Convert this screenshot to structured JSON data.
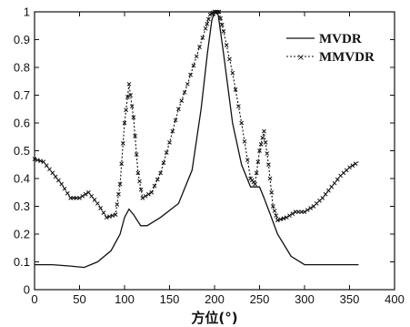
{
  "chart_data": {
    "type": "line",
    "xlabel": "方位(°)",
    "ylabel": "",
    "xlim": [
      0,
      400
    ],
    "ylim": [
      0,
      1
    ],
    "x_ticks": [
      "0",
      "50",
      "100",
      "150",
      "200",
      "250",
      "300",
      "350",
      "400"
    ],
    "y_ticks": [
      "0",
      "0.1",
      "0.2",
      "0.3",
      "0.4",
      "0.5",
      "0.6",
      "0.7",
      "0.8",
      "0.9",
      "1"
    ],
    "grid": false,
    "legend_position": "top-right",
    "series": [
      {
        "name": "MVDR",
        "line_style": "solid",
        "color": "#111111",
        "x": [
          0,
          20,
          40,
          55,
          70,
          85,
          95,
          100,
          105,
          110,
          118,
          125,
          140,
          160,
          175,
          185,
          192,
          197,
          200,
          204,
          210,
          220,
          230,
          240,
          250,
          255,
          262,
          270,
          285,
          300,
          320,
          340,
          360
        ],
        "y": [
          0.09,
          0.09,
          0.085,
          0.08,
          0.1,
          0.14,
          0.2,
          0.26,
          0.29,
          0.27,
          0.23,
          0.23,
          0.26,
          0.31,
          0.43,
          0.65,
          0.85,
          0.97,
          1.0,
          0.99,
          0.85,
          0.6,
          0.45,
          0.37,
          0.37,
          0.33,
          0.27,
          0.2,
          0.12,
          0.09,
          0.09,
          0.09,
          0.09
        ]
      },
      {
        "name": "MMVDR",
        "line_style": "dotted-x",
        "color": "#111111",
        "x": [
          0,
          10,
          20,
          30,
          40,
          50,
          60,
          70,
          80,
          90,
          95,
          100,
          105,
          110,
          115,
          120,
          130,
          140,
          150,
          160,
          170,
          180,
          190,
          195,
          200,
          205,
          210,
          220,
          230,
          240,
          245,
          250,
          255,
          260,
          265,
          270,
          280,
          290,
          300,
          310,
          320,
          330,
          340,
          350,
          360
        ],
        "y": [
          0.47,
          0.46,
          0.42,
          0.38,
          0.33,
          0.33,
          0.35,
          0.31,
          0.26,
          0.27,
          0.38,
          0.6,
          0.74,
          0.62,
          0.42,
          0.33,
          0.35,
          0.42,
          0.53,
          0.65,
          0.74,
          0.84,
          0.94,
          0.99,
          1.0,
          1.0,
          0.93,
          0.78,
          0.6,
          0.4,
          0.38,
          0.5,
          0.57,
          0.45,
          0.3,
          0.25,
          0.26,
          0.28,
          0.28,
          0.3,
          0.33,
          0.37,
          0.41,
          0.44,
          0.46
        ]
      }
    ]
  }
}
